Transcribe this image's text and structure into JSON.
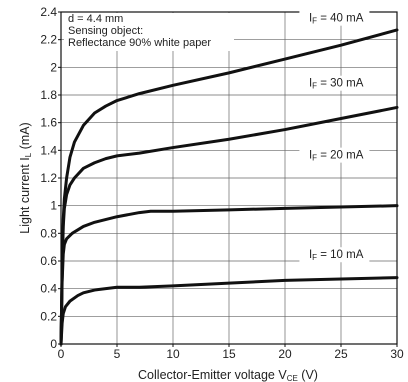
{
  "chart_data": {
    "type": "line",
    "xlabel": "Collector-Emitter voltage V",
    "xlabel_sub": "CE",
    "xlabel_unit": " (V)",
    "ylabel": "Light current I",
    "ylabel_sub": "L",
    "ylabel_unit": " (mA)",
    "xlim": [
      0,
      30
    ],
    "ylim": [
      0,
      2.4
    ],
    "xticks": [
      0,
      5,
      10,
      15,
      20,
      25,
      30
    ],
    "yticks": [
      0,
      0.2,
      0.4,
      0.6,
      0.8,
      1,
      1.2,
      1.4,
      1.6,
      1.8,
      2,
      2.2,
      2.4
    ],
    "grid": true,
    "annotation": [
      "d = 4.4 mm",
      "Sensing object:",
      "Reflectance 90% white paper"
    ],
    "series": [
      {
        "name": "I",
        "name_sub": "F",
        "name_rest": " = 40 mA",
        "points": [
          [
            0,
            0
          ],
          [
            0.1,
            0.5
          ],
          [
            0.2,
            0.9
          ],
          [
            0.3,
            1.05
          ],
          [
            0.5,
            1.2
          ],
          [
            0.8,
            1.35
          ],
          [
            1.2,
            1.46
          ],
          [
            2,
            1.58
          ],
          [
            3,
            1.67
          ],
          [
            4,
            1.72
          ],
          [
            5,
            1.76
          ],
          [
            7,
            1.81
          ],
          [
            10,
            1.87
          ],
          [
            15,
            1.96
          ],
          [
            20,
            2.06
          ],
          [
            25,
            2.16
          ],
          [
            30,
            2.27
          ]
        ]
      },
      {
        "name": "I",
        "name_sub": "F",
        "name_rest": " = 30 mA",
        "points": [
          [
            0,
            0
          ],
          [
            0.1,
            0.5
          ],
          [
            0.2,
            0.85
          ],
          [
            0.3,
            0.98
          ],
          [
            0.5,
            1.08
          ],
          [
            0.8,
            1.15
          ],
          [
            1.2,
            1.2
          ],
          [
            2,
            1.27
          ],
          [
            3,
            1.31
          ],
          [
            4,
            1.34
          ],
          [
            5,
            1.36
          ],
          [
            7,
            1.38
          ],
          [
            10,
            1.42
          ],
          [
            15,
            1.48
          ],
          [
            20,
            1.55
          ],
          [
            25,
            1.63
          ],
          [
            30,
            1.71
          ]
        ]
      },
      {
        "name": "I",
        "name_sub": "F",
        "name_rest": " = 20 mA",
        "points": [
          [
            0,
            0
          ],
          [
            0.1,
            0.45
          ],
          [
            0.2,
            0.65
          ],
          [
            0.3,
            0.72
          ],
          [
            0.5,
            0.76
          ],
          [
            1,
            0.8
          ],
          [
            2,
            0.85
          ],
          [
            3,
            0.88
          ],
          [
            5,
            0.92
          ],
          [
            7,
            0.95
          ],
          [
            8,
            0.96
          ],
          [
            10,
            0.96
          ],
          [
            15,
            0.97
          ],
          [
            20,
            0.98
          ],
          [
            25,
            0.99
          ],
          [
            30,
            1.0
          ]
        ]
      },
      {
        "name": "I",
        "name_sub": "F",
        "name_rest": " = 10 mA",
        "points": [
          [
            0,
            0
          ],
          [
            0.1,
            0.15
          ],
          [
            0.2,
            0.22
          ],
          [
            0.4,
            0.27
          ],
          [
            0.8,
            0.31
          ],
          [
            1.5,
            0.35
          ],
          [
            2,
            0.37
          ],
          [
            3,
            0.39
          ],
          [
            4,
            0.4
          ],
          [
            5,
            0.41
          ],
          [
            7,
            0.41
          ],
          [
            10,
            0.42
          ],
          [
            15,
            0.44
          ],
          [
            20,
            0.46
          ],
          [
            25,
            0.47
          ],
          [
            30,
            0.48
          ]
        ]
      }
    ]
  }
}
